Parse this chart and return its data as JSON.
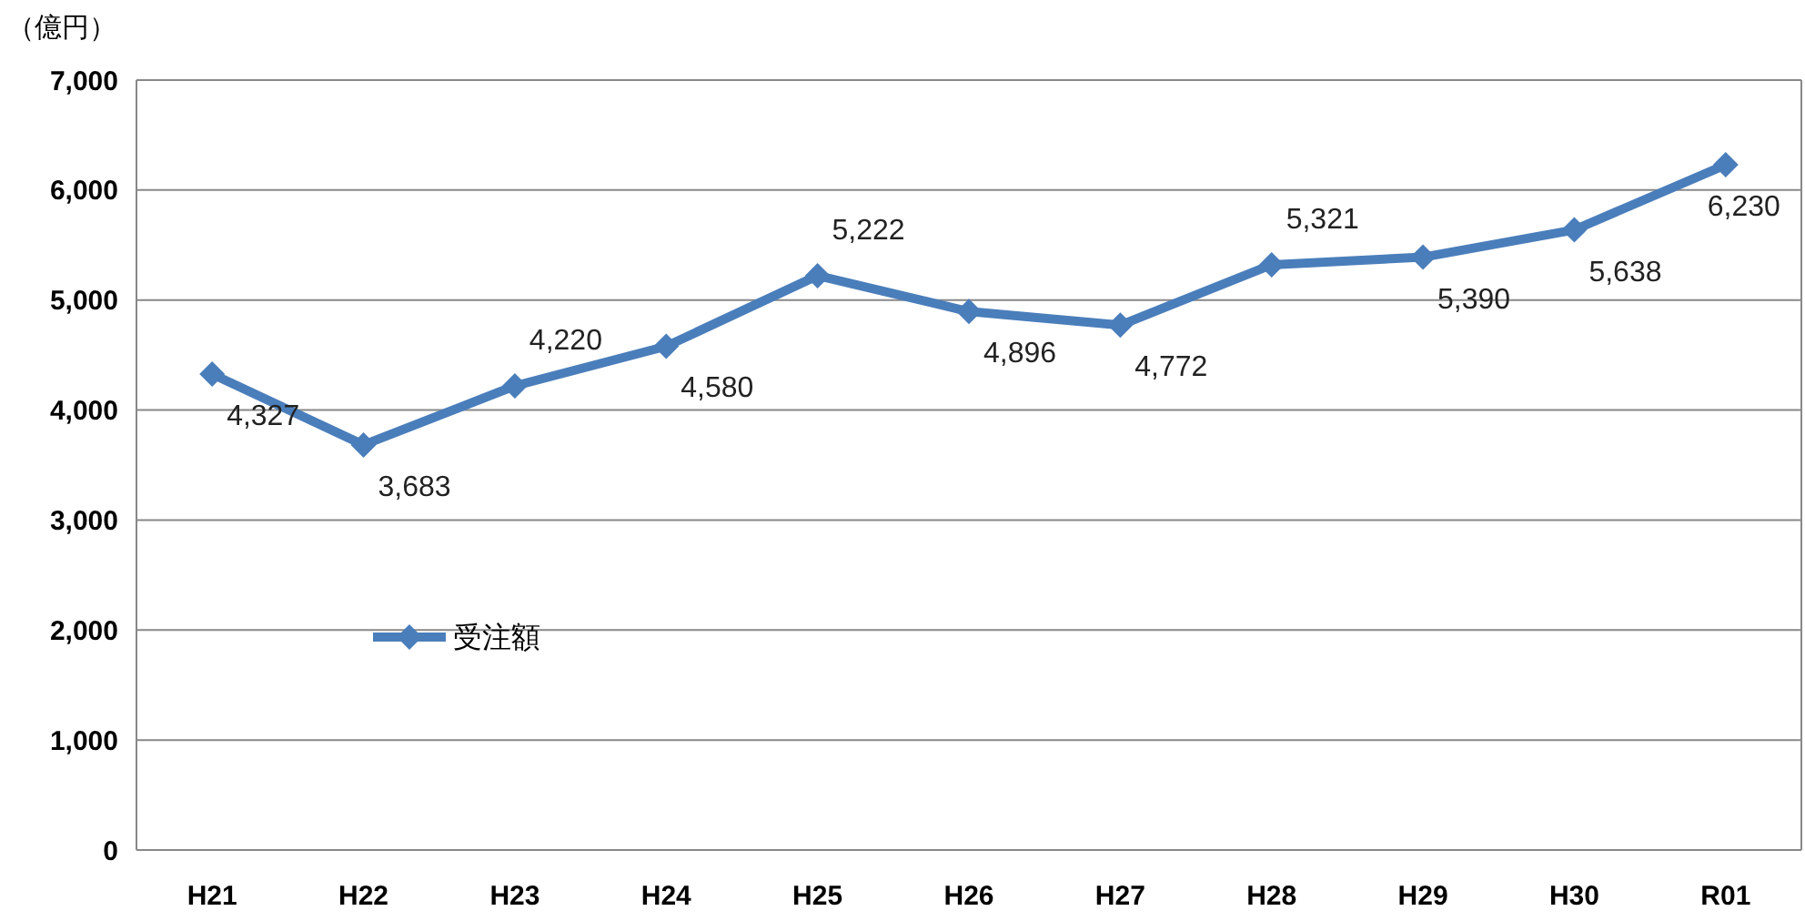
{
  "chart_data": {
    "type": "line",
    "ylabel": "（億円）",
    "categories": [
      "H21",
      "H22",
      "H23",
      "H24",
      "H25",
      "H26",
      "H27",
      "H28",
      "H29",
      "H30",
      "R01"
    ],
    "series": [
      {
        "name": "受注額",
        "color": "#4a7ebb",
        "values": [
          4327,
          3683,
          4220,
          4580,
          5222,
          4896,
          4772,
          5321,
          5390,
          5638,
          6230
        ],
        "value_labels": [
          "4,327",
          "3,683",
          "4,220",
          "4,580",
          "5,222",
          "4,896",
          "4,772",
          "5,321",
          "5,390",
          "5,638",
          "6,230"
        ]
      }
    ],
    "ylim": [
      0,
      7000
    ],
    "yticks": [
      {
        "value": 0,
        "label": "0"
      },
      {
        "value": 1000,
        "label": "1,000"
      },
      {
        "value": 2000,
        "label": "2,000"
      },
      {
        "value": 3000,
        "label": "3,000"
      },
      {
        "value": 4000,
        "label": "4,000"
      },
      {
        "value": 5000,
        "label": "5,000"
      },
      {
        "value": 6000,
        "label": "6,000"
      },
      {
        "value": 7000,
        "label": "7,000"
      }
    ],
    "grid": "y",
    "legend": "left",
    "marker": "diamond",
    "line_style": "solid"
  }
}
